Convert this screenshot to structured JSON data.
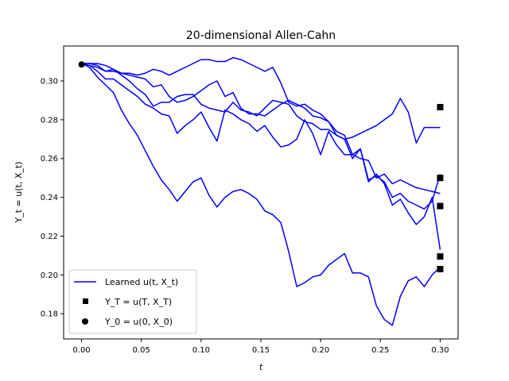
{
  "chart_data": {
    "type": "line",
    "title": "20-dimensional Allen-Cahn",
    "xlabel": "t",
    "ylabel": "Y_t = u(t, X_t)",
    "xlim": [
      -0.015,
      0.315
    ],
    "ylim": [
      0.167,
      0.318
    ],
    "xticks": [
      0.0,
      0.05,
      0.1,
      0.15,
      0.2,
      0.25,
      0.3
    ],
    "xtick_labels": [
      "0.00",
      "0.05",
      "0.10",
      "0.15",
      "0.20",
      "0.25",
      "0.30"
    ],
    "yticks": [
      0.18,
      0.2,
      0.22,
      0.24,
      0.26,
      0.28,
      0.3
    ],
    "ytick_labels": [
      "0.18",
      "0.20",
      "0.22",
      "0.24",
      "0.26",
      "0.28",
      "0.30"
    ],
    "grid": false,
    "legend": {
      "placement": "lower-left",
      "entries": [
        {
          "label": "Learned u(t, X_t)",
          "marker": "line"
        },
        {
          "label": "Y_T = u(T, X_T)",
          "marker": "square"
        },
        {
          "label": "Y_0 = u(0, X_0)",
          "marker": "circle"
        }
      ]
    },
    "colors": {
      "line": "#0000ff",
      "marker": "#000000"
    },
    "x": [
      0.0,
      0.0067,
      0.0133,
      0.02,
      0.0267,
      0.0333,
      0.04,
      0.0467,
      0.0533,
      0.06,
      0.0667,
      0.0733,
      0.08,
      0.0867,
      0.0933,
      0.1,
      0.1067,
      0.1133,
      0.12,
      0.1267,
      0.1333,
      0.14,
      0.1467,
      0.1533,
      0.16,
      0.1667,
      0.1733,
      0.18,
      0.1867,
      0.1933,
      0.2,
      0.2067,
      0.2133,
      0.22,
      0.2267,
      0.2333,
      0.24,
      0.2467,
      0.2533,
      0.26,
      0.2667,
      0.2733,
      0.28,
      0.2867,
      0.2933,
      0.3
    ],
    "series": [
      {
        "values": [
          0.309,
          0.309,
          0.309,
          0.308,
          0.306,
          0.304,
          0.304,
          0.303,
          0.304,
          0.306,
          0.305,
          0.303,
          0.305,
          0.307,
          0.309,
          0.311,
          0.311,
          0.31,
          0.31,
          0.312,
          0.311,
          0.309,
          0.307,
          0.305,
          0.307,
          0.299,
          0.289,
          0.287,
          0.288,
          0.285,
          0.283,
          0.279,
          0.272,
          0.27,
          0.271,
          0.273,
          0.275,
          0.277,
          0.28,
          0.283,
          0.291,
          0.284,
          0.268,
          0.276,
          0.276,
          0.276
        ]
      },
      {
        "values": [
          0.309,
          0.309,
          0.308,
          0.305,
          0.305,
          0.304,
          0.303,
          0.302,
          0.301,
          0.297,
          0.298,
          0.292,
          0.289,
          0.29,
          0.292,
          0.295,
          0.298,
          0.3,
          0.292,
          0.294,
          0.286,
          0.283,
          0.283,
          0.282,
          0.285,
          0.288,
          0.29,
          0.288,
          0.286,
          0.282,
          0.281,
          0.279,
          0.274,
          0.272,
          0.262,
          0.26,
          0.259,
          0.25,
          0.252,
          0.247,
          0.249,
          0.247,
          0.245,
          0.244,
          0.243,
          0.242
        ]
      },
      {
        "values": [
          0.309,
          0.308,
          0.307,
          0.305,
          0.306,
          0.303,
          0.3,
          0.296,
          0.293,
          0.287,
          0.289,
          0.289,
          0.292,
          0.293,
          0.293,
          0.288,
          0.286,
          0.285,
          0.284,
          0.289,
          0.285,
          0.284,
          0.282,
          0.286,
          0.29,
          0.289,
          0.288,
          0.282,
          0.279,
          0.278,
          0.275,
          0.275,
          0.272,
          0.27,
          0.26,
          0.265,
          0.249,
          0.251,
          0.248,
          0.24,
          0.242,
          0.238,
          0.236,
          0.234,
          0.238,
          0.252
        ]
      },
      {
        "values": [
          0.309,
          0.308,
          0.305,
          0.301,
          0.301,
          0.298,
          0.295,
          0.292,
          0.288,
          0.286,
          0.283,
          0.282,
          0.273,
          0.277,
          0.28,
          0.284,
          0.276,
          0.269,
          0.285,
          0.283,
          0.28,
          0.278,
          0.274,
          0.277,
          0.271,
          0.266,
          0.267,
          0.27,
          0.28,
          0.273,
          0.262,
          0.274,
          0.267,
          0.262,
          0.262,
          0.265,
          0.248,
          0.252,
          0.247,
          0.236,
          0.239,
          0.232,
          0.226,
          0.23,
          0.24,
          0.213
        ]
      },
      {
        "values": [
          0.309,
          0.307,
          0.302,
          0.298,
          0.294,
          0.285,
          0.278,
          0.272,
          0.264,
          0.256,
          0.249,
          0.244,
          0.238,
          0.243,
          0.248,
          0.25,
          0.241,
          0.235,
          0.24,
          0.243,
          0.244,
          0.242,
          0.239,
          0.233,
          0.231,
          0.227,
          0.212,
          0.194,
          0.196,
          0.199,
          0.2,
          0.205,
          0.208,
          0.211,
          0.201,
          0.201,
          0.199,
          0.184,
          0.177,
          0.174,
          0.189,
          0.197,
          0.199,
          0.194,
          0.2,
          0.204
        ]
      }
    ],
    "terminal_points": {
      "x": 0.3,
      "values": [
        0.2865,
        0.25,
        0.2355,
        0.2095,
        0.203
      ]
    },
    "initial_point": {
      "x": 0.0,
      "value": 0.3085
    }
  }
}
